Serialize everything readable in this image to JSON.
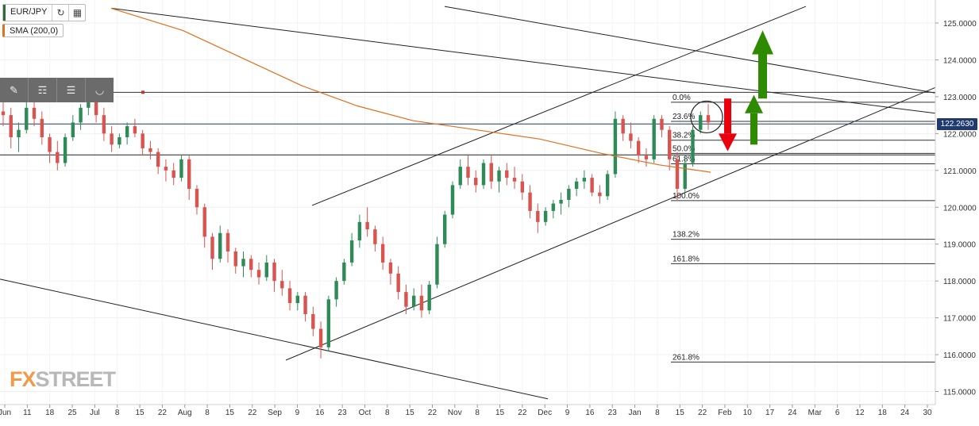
{
  "symbol": {
    "label": "EUR/JPY"
  },
  "indicator": {
    "label": "SMA (200,0)"
  },
  "logo": {
    "text_fx": "FX",
    "text_street": "STREET"
  },
  "current_price": "122.2630",
  "colors": {
    "up": "#2e8b57",
    "down": "#d9534f",
    "sma": "#e0701c",
    "price_tag": "#1f3a6e",
    "arrow_up": "#2e8b00",
    "arrow_down": "#e8000d"
  },
  "chart_data": {
    "type": "candlestick",
    "symbol": "EUR/JPY",
    "y_ticks": [
      "125.0000",
      "124.0000",
      "123.0000",
      "122.0000",
      "121.0000",
      "120.0000",
      "119.0000",
      "118.0000",
      "117.0000",
      "116.0000",
      "115.0000"
    ],
    "ylim": [
      114.85,
      125.45
    ],
    "x_ticks": [
      "Jun",
      "11",
      "18",
      "25",
      "Jul",
      "8",
      "15",
      "22",
      "Aug",
      "8",
      "15",
      "22",
      "Sep",
      "9",
      "16",
      "23",
      "Oct",
      "8",
      "15",
      "22",
      "Nov",
      "8",
      "15",
      "22",
      "Dec",
      "9",
      "16",
      "23",
      "Jan",
      "8",
      "15",
      "22",
      "Feb",
      "10",
      "17",
      "24",
      "Mar",
      "6",
      "12",
      "18",
      "24",
      "30"
    ],
    "fibonacci": [
      {
        "label": "0.0%",
        "price": 122.85
      },
      {
        "label": "23.6%",
        "price": 122.33
      },
      {
        "label": "38.2%",
        "price": 121.82
      },
      {
        "label": "50.0%",
        "price": 121.46
      },
      {
        "label": "61.8%",
        "price": 121.18
      },
      {
        "label": "100.0%",
        "price": 120.18
      },
      {
        "label": "138.2%",
        "price": 119.13
      },
      {
        "label": "161.8%",
        "price": 118.47
      },
      {
        "label": "261.8%",
        "price": 115.8
      }
    ],
    "candles": [
      [
        122.6,
        122.9,
        122.2,
        122.5
      ],
      [
        122.5,
        122.7,
        121.6,
        121.9
      ],
      [
        121.9,
        122.3,
        121.5,
        122.1
      ],
      [
        122.1,
        122.9,
        122.0,
        122.7
      ],
      [
        122.7,
        123.0,
        122.2,
        122.4
      ],
      [
        122.4,
        122.6,
        121.7,
        121.9
      ],
      [
        121.9,
        122.0,
        121.2,
        121.5
      ],
      [
        121.5,
        121.8,
        121.0,
        121.2
      ],
      [
        121.2,
        122.0,
        121.1,
        121.9
      ],
      [
        121.9,
        122.5,
        121.8,
        122.3
      ],
      [
        122.3,
        122.8,
        122.1,
        122.7
      ],
      [
        122.7,
        123.2,
        122.5,
        122.9
      ],
      [
        122.9,
        123.2,
        122.3,
        122.5
      ],
      [
        122.5,
        122.7,
        121.8,
        122.0
      ],
      [
        122.0,
        122.2,
        121.5,
        121.7
      ],
      [
        121.7,
        122.0,
        121.6,
        121.9
      ],
      [
        121.9,
        122.3,
        121.7,
        122.2
      ],
      [
        122.2,
        122.4,
        121.9,
        122.0
      ],
      [
        122.0,
        122.1,
        121.4,
        121.6
      ],
      [
        121.6,
        121.8,
        121.3,
        121.5
      ],
      [
        121.5,
        121.6,
        120.9,
        121.1
      ],
      [
        121.1,
        121.3,
        120.7,
        121.0
      ],
      [
        121.0,
        121.2,
        120.6,
        120.8
      ],
      [
        120.8,
        121.4,
        120.7,
        121.3
      ],
      [
        121.3,
        121.4,
        120.2,
        120.5
      ],
      [
        120.5,
        120.6,
        119.8,
        120.0
      ],
      [
        120.0,
        120.1,
        118.9,
        119.2
      ],
      [
        119.2,
        119.3,
        118.3,
        118.6
      ],
      [
        118.6,
        119.5,
        118.5,
        119.3
      ],
      [
        119.3,
        119.4,
        118.5,
        118.8
      ],
      [
        118.8,
        118.9,
        118.2,
        118.4
      ],
      [
        118.4,
        118.8,
        118.1,
        118.6
      ],
      [
        118.6,
        118.7,
        118.1,
        118.3
      ],
      [
        118.3,
        118.5,
        117.9,
        118.1
      ],
      [
        118.1,
        118.7,
        118.0,
        118.5
      ],
      [
        118.5,
        118.6,
        117.7,
        118.0
      ],
      [
        118.0,
        118.3,
        117.6,
        117.8
      ],
      [
        117.8,
        118.0,
        117.2,
        117.4
      ],
      [
        117.4,
        117.7,
        117.2,
        117.6
      ],
      [
        117.6,
        117.7,
        116.9,
        117.1
      ],
      [
        117.1,
        117.3,
        116.5,
        116.7
      ],
      [
        116.7,
        116.9,
        115.9,
        116.2
      ],
      [
        116.2,
        117.6,
        116.1,
        117.5
      ],
      [
        117.5,
        118.1,
        117.3,
        118.0
      ],
      [
        118.0,
        118.6,
        117.9,
        118.5
      ],
      [
        118.5,
        119.3,
        118.4,
        119.1
      ],
      [
        119.1,
        119.8,
        118.9,
        119.6
      ],
      [
        119.6,
        120.0,
        119.2,
        119.4
      ],
      [
        119.4,
        119.5,
        118.8,
        119.0
      ],
      [
        119.0,
        119.2,
        118.3,
        118.5
      ],
      [
        118.5,
        118.6,
        117.9,
        118.2
      ],
      [
        118.2,
        118.4,
        117.5,
        117.7
      ],
      [
        117.7,
        117.9,
        117.1,
        117.3
      ],
      [
        117.3,
        117.8,
        117.2,
        117.6
      ],
      [
        117.6,
        117.9,
        117.0,
        117.2
      ],
      [
        117.2,
        118.0,
        117.1,
        117.9
      ],
      [
        117.9,
        119.2,
        117.8,
        119.0
      ],
      [
        119.0,
        119.9,
        118.9,
        119.8
      ],
      [
        119.8,
        120.7,
        119.7,
        120.6
      ],
      [
        120.6,
        121.3,
        120.5,
        121.1
      ],
      [
        121.1,
        121.4,
        120.6,
        120.8
      ],
      [
        120.8,
        121.0,
        120.4,
        120.6
      ],
      [
        120.6,
        121.3,
        120.5,
        121.2
      ],
      [
        121.2,
        121.4,
        120.5,
        120.7
      ],
      [
        120.7,
        121.1,
        120.4,
        121.0
      ],
      [
        121.0,
        121.2,
        120.6,
        120.8
      ],
      [
        120.8,
        121.1,
        120.5,
        120.7
      ],
      [
        120.7,
        120.9,
        120.2,
        120.4
      ],
      [
        120.4,
        120.6,
        119.7,
        119.9
      ],
      [
        119.9,
        120.1,
        119.3,
        119.6
      ],
      [
        119.6,
        120.0,
        119.5,
        119.9
      ],
      [
        119.9,
        120.2,
        119.7,
        120.1
      ],
      [
        120.1,
        120.4,
        119.8,
        120.2
      ],
      [
        120.2,
        120.6,
        120.0,
        120.5
      ],
      [
        120.5,
        120.8,
        120.3,
        120.7
      ],
      [
        120.7,
        121.0,
        120.5,
        120.8
      ],
      [
        120.8,
        120.9,
        120.3,
        120.4
      ],
      [
        120.4,
        120.6,
        120.1,
        120.3
      ],
      [
        120.3,
        121.0,
        120.2,
        120.9
      ],
      [
        120.9,
        122.6,
        120.8,
        122.4
      ],
      [
        122.4,
        122.5,
        121.8,
        122.0
      ],
      [
        122.0,
        122.3,
        121.6,
        121.8
      ],
      [
        121.8,
        121.9,
        121.2,
        121.4
      ],
      [
        121.4,
        121.6,
        121.1,
        121.3
      ],
      [
        121.3,
        122.5,
        121.2,
        122.4
      ],
      [
        122.4,
        122.5,
        121.9,
        122.1
      ],
      [
        122.1,
        122.2,
        121.0,
        121.3
      ],
      [
        121.3,
        121.5,
        120.2,
        120.5
      ],
      [
        120.5,
        121.4,
        120.4,
        121.2
      ],
      [
        121.2,
        122.2,
        121.1,
        122.1
      ],
      [
        122.1,
        122.6,
        122.0,
        122.5
      ],
      [
        122.5,
        122.8,
        122.1,
        122.3
      ]
    ]
  }
}
